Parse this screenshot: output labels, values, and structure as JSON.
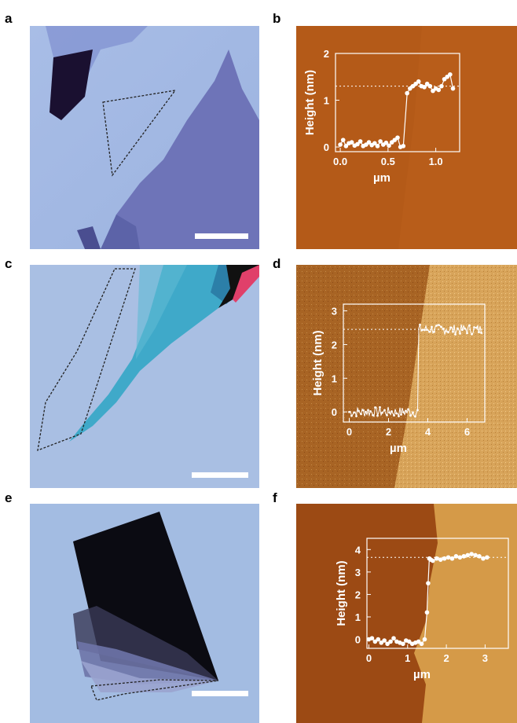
{
  "panels": {
    "a": {
      "label": "a"
    },
    "b": {
      "label": "b"
    },
    "c": {
      "label": "c"
    },
    "d": {
      "label": "d"
    },
    "e": {
      "label": "e"
    },
    "f": {
      "label": "f"
    }
  },
  "colors": {
    "optical_bg": "#8fa8d8",
    "afm_dark": "#8a3f12",
    "afm_light": "#c98d3e",
    "trace": "#ffffff"
  },
  "chart_data": [
    {
      "id": "b",
      "type": "scatter",
      "xlabel": "µm",
      "ylabel": "Height (nm)",
      "xlim": [
        -0.05,
        1.25
      ],
      "ylim": [
        -0.1,
        2.0
      ],
      "xticks": [
        "0.0",
        "0.5",
        "1.0"
      ],
      "xtick_values": [
        0.0,
        0.5,
        1.0
      ],
      "yticks": [
        "0",
        "1",
        "2"
      ],
      "ytick_values": [
        0,
        1,
        2
      ],
      "reference_line": 1.3,
      "x": [
        0.0,
        0.03,
        0.06,
        0.09,
        0.12,
        0.15,
        0.18,
        0.21,
        0.24,
        0.27,
        0.3,
        0.33,
        0.36,
        0.39,
        0.42,
        0.45,
        0.48,
        0.51,
        0.54,
        0.57,
        0.6,
        0.63,
        0.66,
        0.7,
        0.73,
        0.76,
        0.79,
        0.82,
        0.85,
        0.88,
        0.91,
        0.94,
        0.97,
        1.0,
        1.03,
        1.06,
        1.09,
        1.12,
        1.15,
        1.18
      ],
      "y": [
        0.05,
        0.15,
        0.02,
        0.08,
        0.1,
        0.03,
        0.06,
        0.12,
        0.02,
        0.05,
        0.1,
        0.04,
        0.08,
        0.02,
        0.12,
        0.05,
        0.09,
        0.03,
        0.1,
        0.15,
        0.2,
        0.0,
        0.02,
        1.15,
        1.25,
        1.3,
        1.35,
        1.4,
        1.3,
        1.28,
        1.35,
        1.3,
        1.2,
        1.25,
        1.22,
        1.3,
        1.45,
        1.5,
        1.55,
        1.25
      ]
    },
    {
      "id": "d",
      "type": "line",
      "xlabel": "µm",
      "ylabel": "Height (nm)",
      "xlim": [
        -0.3,
        6.9
      ],
      "ylim": [
        -0.3,
        3.2
      ],
      "xticks": [
        "0",
        "2",
        "4",
        "6"
      ],
      "xtick_values": [
        0,
        2,
        4,
        6
      ],
      "yticks": [
        "0",
        "1",
        "2",
        "3"
      ],
      "ytick_values": [
        0,
        1,
        2,
        3
      ],
      "reference_line": 2.45,
      "step_at": 3.5,
      "low_level": 0.0,
      "high_level": 2.45
    },
    {
      "id": "f",
      "type": "scatter",
      "xlabel": "µm",
      "ylabel": "Height (nm)",
      "xlim": [
        -0.05,
        3.6
      ],
      "ylim": [
        -0.4,
        4.5
      ],
      "xticks": [
        "0",
        "1",
        "2",
        "3"
      ],
      "xtick_values": [
        0,
        1,
        2,
        3
      ],
      "yticks": [
        "0",
        "1",
        "2",
        "3",
        "4"
      ],
      "ytick_values": [
        0,
        1,
        2,
        3,
        4
      ],
      "reference_line": 3.65,
      "x": [
        0.0,
        0.08,
        0.16,
        0.24,
        0.32,
        0.4,
        0.48,
        0.56,
        0.64,
        0.72,
        0.8,
        0.88,
        0.96,
        1.04,
        1.12,
        1.2,
        1.28,
        1.36,
        1.44,
        1.5,
        1.53,
        1.56,
        1.6,
        1.65,
        1.75,
        1.85,
        1.95,
        2.05,
        2.15,
        2.25,
        2.35,
        2.45,
        2.55,
        2.65,
        2.75,
        2.85,
        2.95,
        3.05
      ],
      "y": [
        0.0,
        0.05,
        -0.1,
        0.0,
        -0.15,
        -0.05,
        -0.2,
        -0.1,
        0.05,
        -0.1,
        -0.15,
        -0.2,
        -0.05,
        -0.1,
        -0.2,
        -0.15,
        -0.1,
        -0.2,
        0.0,
        1.2,
        2.5,
        3.6,
        3.55,
        3.5,
        3.6,
        3.55,
        3.6,
        3.65,
        3.6,
        3.7,
        3.65,
        3.7,
        3.75,
        3.8,
        3.75,
        3.7,
        3.6,
        3.65
      ]
    }
  ]
}
